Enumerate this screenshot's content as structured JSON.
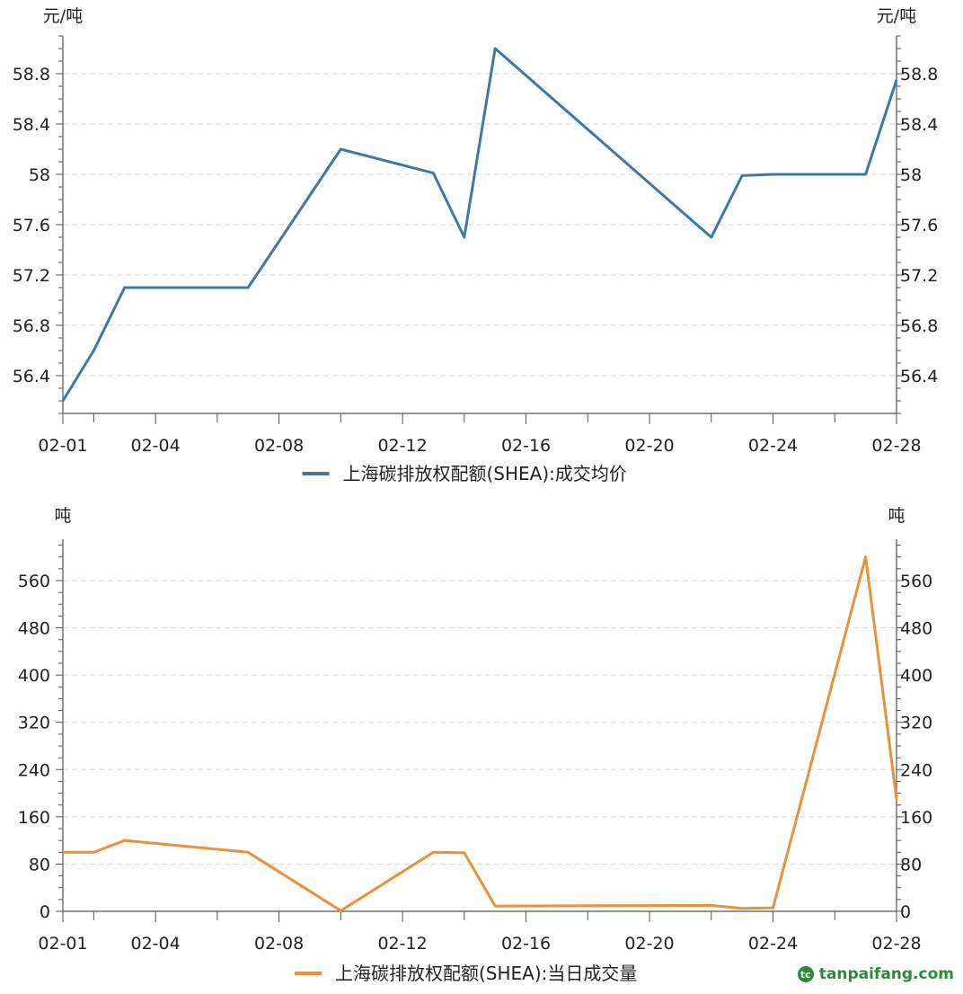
{
  "chart_data": [
    {
      "type": "line",
      "unit_left": "元/吨",
      "unit_right": "元/吨",
      "x_ticks": [
        "02-01",
        "02-04",
        "02-08",
        "02-12",
        "02-16",
        "02-20",
        "02-24",
        "02-28"
      ],
      "ylim": [
        56.1,
        59.1
      ],
      "y_ticks": [
        56.4,
        56.8,
        57.2,
        57.6,
        58,
        58.4,
        58.8
      ],
      "y_tick_labels": [
        "56.4",
        "56.8",
        "57.2",
        "57.6",
        "58",
        "58.4",
        "58.8"
      ],
      "grid": "horizontal dashed",
      "series": [
        {
          "name": "上海碳排放权配额(SHEA):成交均价",
          "color": "#3e79a6",
          "points": [
            {
              "x": "02-01",
              "y": 56.2
            },
            {
              "x": "02-02",
              "y": 56.6
            },
            {
              "x": "02-03",
              "y": 57.1
            },
            {
              "x": "02-07",
              "y": 57.1
            },
            {
              "x": "02-10",
              "y": 58.2
            },
            {
              "x": "02-13",
              "y": 58.01
            },
            {
              "x": "02-14",
              "y": 57.5
            },
            {
              "x": "02-15",
              "y": 59.0
            },
            {
              "x": "02-22",
              "y": 57.5
            },
            {
              "x": "02-23",
              "y": 57.99
            },
            {
              "x": "02-24",
              "y": 58.0
            },
            {
              "x": "02-27",
              "y": 58.0
            },
            {
              "x": "02-28",
              "y": 58.75
            }
          ]
        }
      ]
    },
    {
      "type": "line",
      "unit_left": "吨",
      "unit_right": "吨",
      "x_ticks": [
        "02-01",
        "02-04",
        "02-08",
        "02-12",
        "02-16",
        "02-20",
        "02-24",
        "02-28"
      ],
      "ylim": [
        0,
        630
      ],
      "y_ticks": [
        0,
        80,
        160,
        240,
        320,
        400,
        480,
        560
      ],
      "y_tick_labels": [
        "0",
        "80",
        "160",
        "240",
        "320",
        "400",
        "480",
        "560"
      ],
      "grid": "horizontal dashed",
      "series": [
        {
          "name": "上海碳排放权配额(SHEA):当日成交量",
          "color": "#e8923a",
          "points": [
            {
              "x": "02-01",
              "y": 100
            },
            {
              "x": "02-02",
              "y": 100
            },
            {
              "x": "02-03",
              "y": 120
            },
            {
              "x": "02-07",
              "y": 100
            },
            {
              "x": "02-10",
              "y": 1
            },
            {
              "x": "02-13",
              "y": 100
            },
            {
              "x": "02-14",
              "y": 99
            },
            {
              "x": "02-15",
              "y": 9
            },
            {
              "x": "02-22",
              "y": 10
            },
            {
              "x": "02-23",
              "y": 5
            },
            {
              "x": "02-24",
              "y": 6
            },
            {
              "x": "02-27",
              "y": 600
            },
            {
              "x": "02-28",
              "y": 190
            }
          ]
        }
      ]
    }
  ],
  "watermark": {
    "logo": "tc",
    "text": "tanpaifang.com"
  }
}
